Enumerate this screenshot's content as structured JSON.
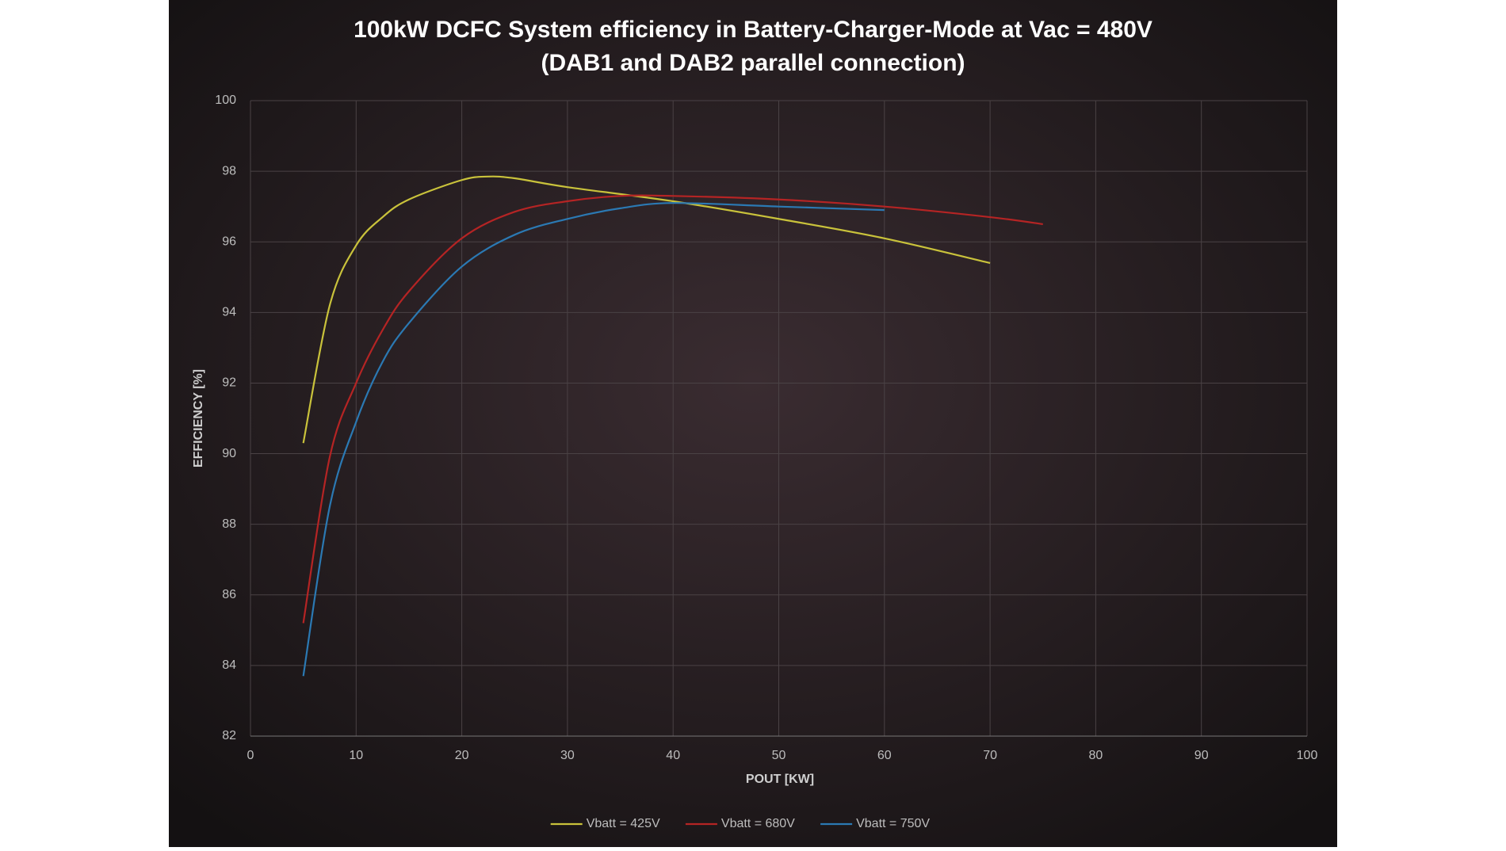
{
  "chart_data": {
    "type": "line",
    "title": [
      "100kW DCFC System efficiency in Battery-Charger-Mode at Vac = 480V",
      "(DAB1 and DAB2 parallel connection)"
    ],
    "x_label": "POUT [KW]",
    "y_label": "EFFICIENCY [%]",
    "xlim": [
      0,
      100
    ],
    "xticks": [
      0,
      10,
      20,
      30,
      40,
      50,
      60,
      70,
      80,
      90,
      100
    ],
    "ylim": [
      82,
      100
    ],
    "yticks": [
      82,
      84,
      86,
      88,
      90,
      92,
      94,
      96,
      98,
      100
    ],
    "grid": true,
    "legend": "bottom",
    "series": [
      {
        "name": "Vbatt = 425V",
        "color": "#c9c23b",
        "x": [
          5,
          7.5,
          10,
          12.5,
          15,
          20,
          22.5,
          25,
          30,
          40,
          50,
          60,
          70
        ],
        "values": [
          90.3,
          94.2,
          95.9,
          96.7,
          97.2,
          97.75,
          97.85,
          97.8,
          97.55,
          97.15,
          96.65,
          96.1,
          95.4
        ]
      },
      {
        "name": "Vbatt = 680V",
        "color": "#b52424",
        "x": [
          5,
          7.5,
          10,
          12.5,
          15,
          20,
          25,
          30,
          35,
          40,
          50,
          60,
          70,
          75
        ],
        "values": [
          85.2,
          89.9,
          92.0,
          93.5,
          94.6,
          96.1,
          96.85,
          97.15,
          97.3,
          97.3,
          97.2,
          97.0,
          96.7,
          96.5
        ]
      },
      {
        "name": "Vbatt = 750V",
        "color": "#2b79b3",
        "x": [
          5,
          7.5,
          10,
          12.5,
          15,
          20,
          25,
          30,
          35,
          40,
          50,
          60
        ],
        "values": [
          83.7,
          88.5,
          90.9,
          92.6,
          93.7,
          95.3,
          96.2,
          96.65,
          96.95,
          97.1,
          97.0,
          96.9
        ]
      }
    ]
  }
}
